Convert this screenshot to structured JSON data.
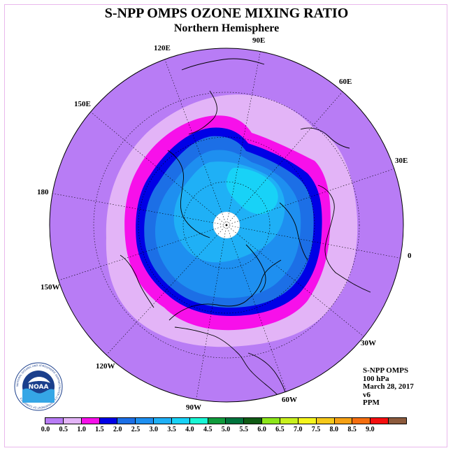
{
  "header": {
    "title": "S-NPP OMPS OZONE MIXING RATIO",
    "subtitle": "Northern Hemisphere"
  },
  "map": {
    "projection": "polar-stereographic-north",
    "longitude_labels": [
      {
        "text": "120E"
      },
      {
        "text": "90E"
      },
      {
        "text": "60E"
      },
      {
        "text": "150E"
      },
      {
        "text": "30E"
      },
      {
        "text": "180"
      },
      {
        "text": "0"
      },
      {
        "text": "150W"
      },
      {
        "text": "30W"
      },
      {
        "text": "120W"
      },
      {
        "text": "60W"
      },
      {
        "text": "90W"
      }
    ],
    "background_color": "#b87cf5",
    "pole_missing_color": "#ffffff"
  },
  "info": {
    "instrument": "S-NPP OMPS",
    "level": "100 hPa",
    "date": "March 28, 2017",
    "version": "v6",
    "units": "PPM"
  },
  "colorbar": {
    "colors": [
      "#b87cf5",
      "#e3b4f7",
      "#f710ea",
      "#0000e6",
      "#1c6fe6",
      "#1e8ff0",
      "#1fb0f6",
      "#18d2f7",
      "#18f7d5",
      "#0f9b3c",
      "#00733c",
      "#0f5a14",
      "#8ce61a",
      "#c8f01e",
      "#f5f51e",
      "#f5c81a",
      "#f5a014",
      "#f56e0f",
      "#f50f0f",
      "#8c5a3c"
    ],
    "ticks": [
      "0.0",
      "0.5",
      "1.0",
      "1.5",
      "2.0",
      "2.5",
      "3.0",
      "3.5",
      "4.0",
      "4.5",
      "5.0",
      "5.5",
      "6.0",
      "6.5",
      "7.0",
      "7.5",
      "8.0",
      "8.5",
      "9.0"
    ]
  },
  "logo": {
    "text": "NOAA",
    "ring_text": "NATIONAL OCEANIC AND ATMOSPHERIC ADMINISTRATION U.S. DEPARTMENT OF COMMERCE"
  }
}
